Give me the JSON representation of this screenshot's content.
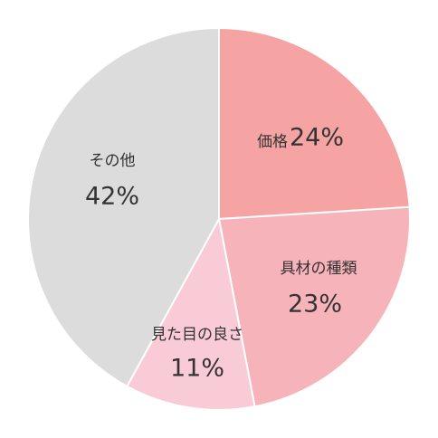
{
  "chart_data": {
    "type": "pie",
    "categories": [
      "価格",
      "具材の種類",
      "見た目の良さ",
      "その他"
    ],
    "values": [
      24,
      23,
      11,
      42
    ],
    "value_labels": [
      "24%",
      "23%",
      "11%",
      "42%"
    ],
    "colors": [
      "#f5a3a3",
      "#f7b3ba",
      "#f9cbd6",
      "#dcdcdc"
    ]
  }
}
